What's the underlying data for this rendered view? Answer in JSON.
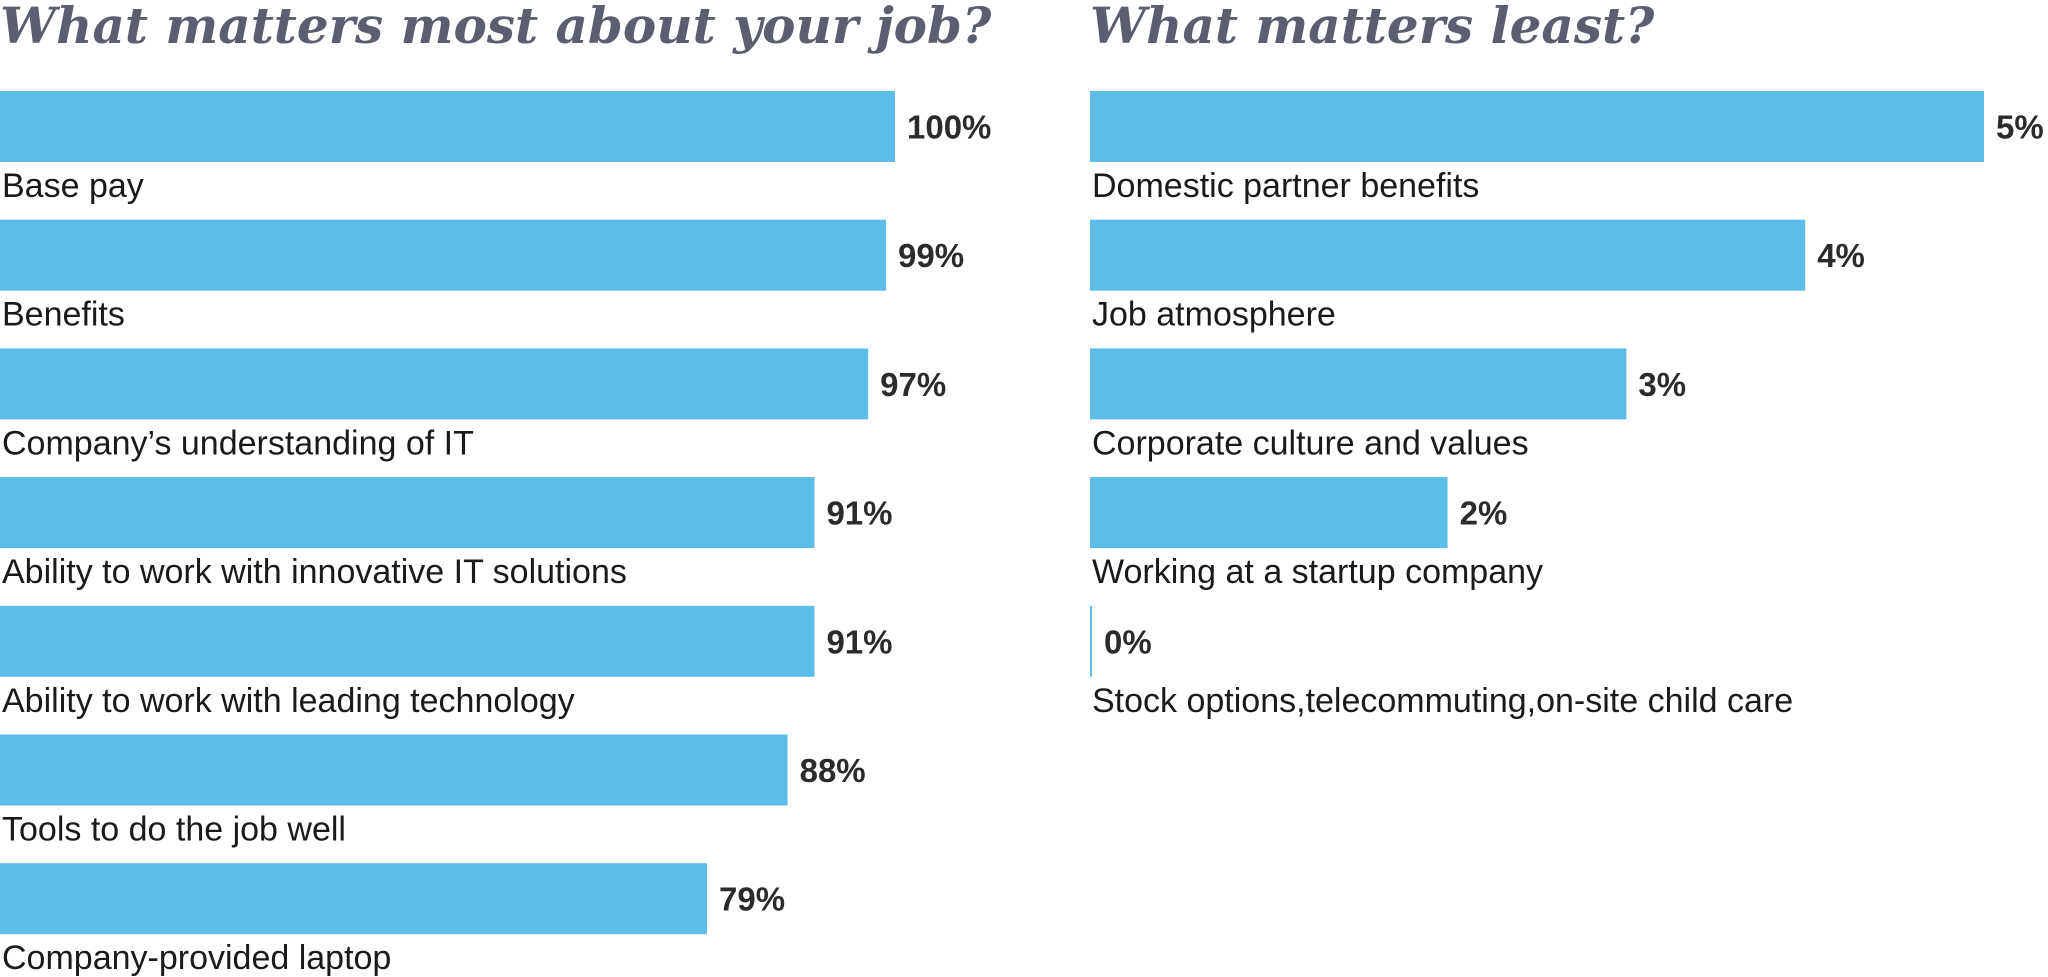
{
  "colors": {
    "bar": "#5bbde8",
    "title": "#5a5e6e",
    "text": "#1a1a1a"
  },
  "chart_data": [
    {
      "type": "bar",
      "orientation": "horizontal",
      "title": "What matters most about your job?",
      "categories": [
        "Base pay",
        "Benefits",
        "Company’s understanding of IT",
        "Ability to work with innovative IT solutions",
        "Ability to work with leading technology",
        "Tools to do the job well",
        "Company-provided laptop"
      ],
      "values": [
        100,
        99,
        97,
        91,
        91,
        88,
        79
      ],
      "value_labels": [
        "100%",
        "99%",
        "97%",
        "91%",
        "91%",
        "88%",
        "79%"
      ],
      "xlim": [
        0,
        100
      ],
      "grid": false,
      "legend": "none"
    },
    {
      "type": "bar",
      "orientation": "horizontal",
      "title": "What matters least?",
      "categories": [
        "Domestic partner benefits",
        "Job atmosphere",
        "Corporate culture and values",
        "Working at a startup company",
        "Stock options,telecommuting,on-site child care"
      ],
      "values": [
        5,
        4,
        3,
        2,
        0
      ],
      "value_labels": [
        "5%",
        "4%",
        "3%",
        "2%",
        "0%"
      ],
      "xlim": [
        0,
        5
      ],
      "grid": false,
      "legend": "none"
    }
  ]
}
